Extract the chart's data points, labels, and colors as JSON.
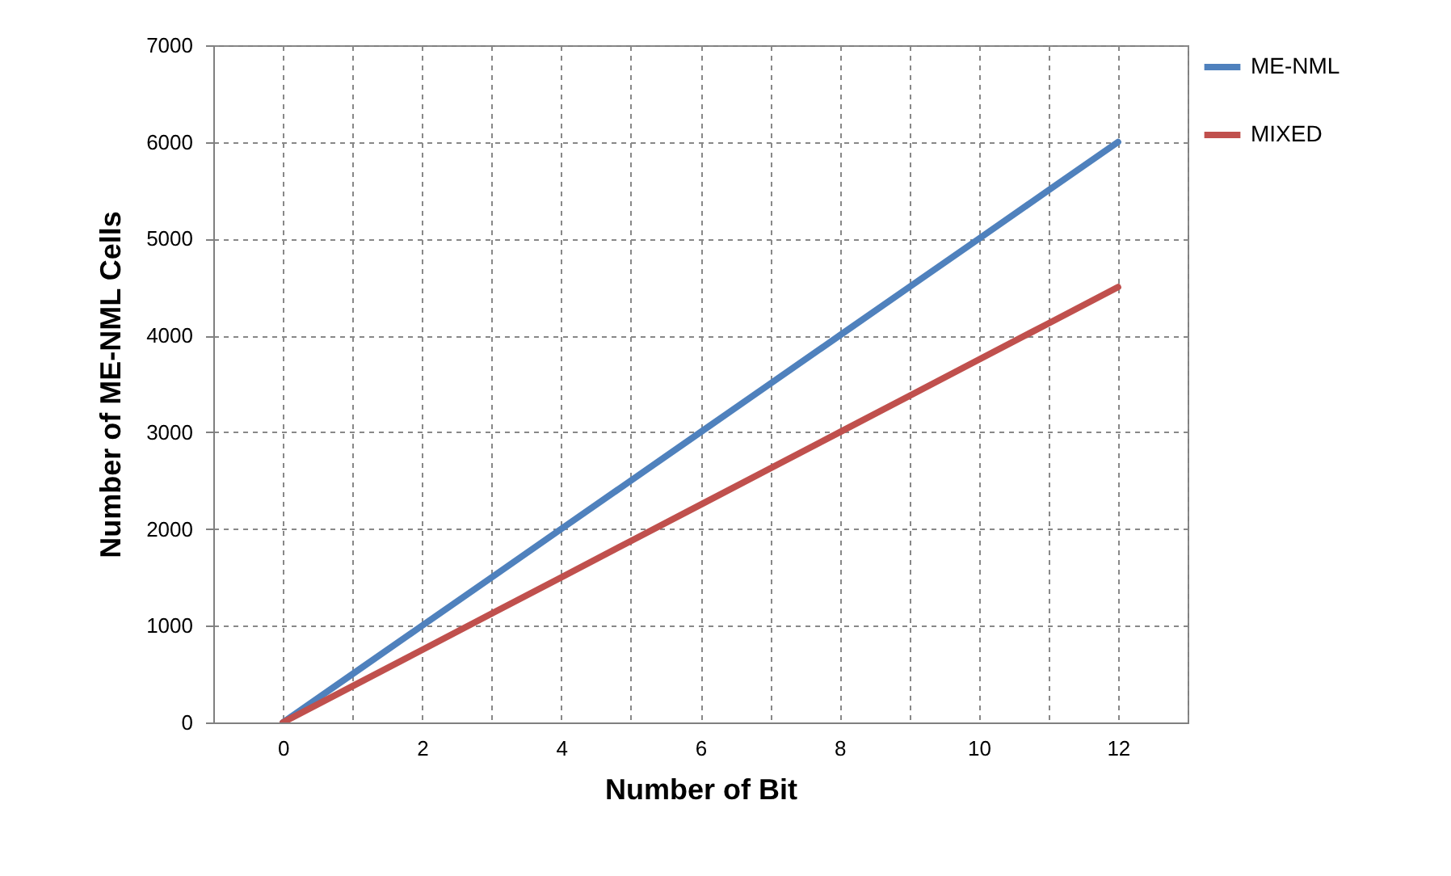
{
  "chart_data": {
    "type": "line",
    "xlabel": "Number of Bit",
    "ylabel": "Number of ME-NML Cells",
    "x": [
      0,
      1,
      2,
      3,
      4,
      5,
      6,
      7,
      8,
      9,
      10,
      11,
      12
    ],
    "series": [
      {
        "name": "ME-NML",
        "color": "#4f81bd",
        "values": [
          0,
          500,
          1000,
          1500,
          2000,
          2500,
          3000,
          3500,
          4000,
          4500,
          5000,
          5500,
          6000
        ]
      },
      {
        "name": "MIXED",
        "color": "#c0504d",
        "values": [
          0,
          375,
          750,
          1125,
          1500,
          1875,
          2250,
          2625,
          3000,
          3375,
          3750,
          4125,
          4500
        ]
      }
    ],
    "xlim": [
      -1,
      13
    ],
    "xticks": [
      {
        "value": -1,
        "label": null
      },
      0,
      {
        "value": 1,
        "label": null
      },
      2,
      {
        "value": 3,
        "label": null
      },
      4,
      {
        "value": 5,
        "label": null
      },
      6,
      {
        "value": 7,
        "label": null
      },
      8,
      {
        "value": 9,
        "label": null
      },
      10,
      {
        "value": 11,
        "label": null
      },
      12,
      {
        "value": 13,
        "label": null
      }
    ],
    "ylim": [
      0,
      7000
    ],
    "yticks": [
      0,
      1000,
      2000,
      3000,
      4000,
      5000,
      6000,
      7000
    ],
    "grid": true,
    "legend": "right",
    "marker": "none",
    "line_style": "solid"
  }
}
